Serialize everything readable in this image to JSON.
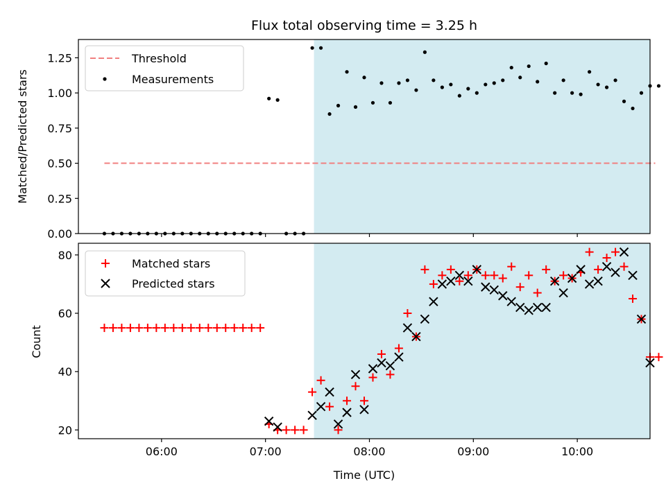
{
  "chart_data": [
    {
      "type": "scatter",
      "title": "Flux total observing time = 3.25 h",
      "xlabel": "",
      "ylabel": "Matched/Predicted stars",
      "xlim": [
        "05:12",
        "10:42"
      ],
      "ylim": [
        0,
        1.38
      ],
      "y_ticks": [
        "0.00",
        "0.25",
        "0.50",
        "0.75",
        "1.00",
        "1.25"
      ],
      "highlight_span": {
        "start": "07:28",
        "end": "10:46",
        "color": "#d3ebf1"
      },
      "legend_position": "upper-left",
      "series": [
        {
          "name": "Threshold",
          "kind": "dashed-line",
          "color": "#f07f7f",
          "x": [
            "05:27",
            "10:45"
          ],
          "y": [
            0.5,
            0.5
          ]
        },
        {
          "name": "Measurements",
          "kind": "dots",
          "color": "#000000",
          "x": [
            "05:27",
            "05:32",
            "05:37",
            "05:42",
            "05:47",
            "05:52",
            "05:57",
            "06:02",
            "06:07",
            "06:12",
            "06:17",
            "06:22",
            "06:27",
            "06:32",
            "06:37",
            "06:42",
            "06:47",
            "06:52",
            "06:57",
            "07:02",
            "07:07",
            "07:12",
            "07:17",
            "07:22",
            "07:27",
            "07:32",
            "07:37",
            "07:42",
            "07:47",
            "07:52",
            "07:57",
            "08:02",
            "08:07",
            "08:12",
            "08:17",
            "08:22",
            "08:27",
            "08:32",
            "08:37",
            "08:42",
            "08:47",
            "08:52",
            "08:57",
            "09:02",
            "09:07",
            "09:12",
            "09:17",
            "09:22",
            "09:27",
            "09:32",
            "09:37",
            "09:42",
            "09:47",
            "09:52",
            "09:57",
            "10:02",
            "10:07",
            "10:12",
            "10:17",
            "10:22",
            "10:27",
            "10:32",
            "10:37",
            "10:42",
            "10:47"
          ],
          "y": [
            0,
            0,
            0,
            0,
            0,
            0,
            0,
            0,
            0,
            0,
            0,
            0,
            0,
            0,
            0,
            0,
            0,
            0,
            0,
            0.96,
            0.95,
            0,
            0,
            0,
            1.32,
            1.32,
            0.85,
            0.91,
            1.15,
            0.9,
            1.11,
            0.93,
            1.07,
            0.93,
            1.07,
            1.09,
            1.02,
            1.29,
            1.09,
            1.04,
            1.06,
            0.98,
            1.03,
            1.0,
            1.06,
            1.07,
            1.09,
            1.18,
            1.11,
            1.19,
            1.08,
            1.21,
            1.0,
            1.09,
            1.0,
            0.99,
            1.15,
            1.06,
            1.04,
            1.09,
            0.94,
            0.89,
            1.0,
            1.05,
            1.05
          ]
        }
      ]
    },
    {
      "type": "scatter",
      "title": "",
      "xlabel": "Time (UTC)",
      "ylabel": "Count",
      "xlim": [
        "05:12",
        "10:42"
      ],
      "ylim": [
        17,
        84
      ],
      "y_ticks": [
        "20",
        "40",
        "60",
        "80"
      ],
      "x_ticks": [
        "06:00",
        "07:00",
        "08:00",
        "09:00",
        "10:00"
      ],
      "highlight_span": {
        "start": "07:28",
        "end": "10:46",
        "color": "#d3ebf1"
      },
      "legend_position": "upper-left",
      "series": [
        {
          "name": "Matched stars",
          "marker": "plus",
          "color": "#ff0000",
          "x": [
            "05:27",
            "05:32",
            "05:37",
            "05:42",
            "05:47",
            "05:52",
            "05:57",
            "06:02",
            "06:07",
            "06:12",
            "06:17",
            "06:22",
            "06:27",
            "06:32",
            "06:37",
            "06:42",
            "06:47",
            "06:52",
            "06:57",
            "07:02",
            "07:07",
            "07:12",
            "07:17",
            "07:22",
            "07:27",
            "07:32",
            "07:37",
            "07:42",
            "07:47",
            "07:52",
            "07:57",
            "08:02",
            "08:07",
            "08:12",
            "08:17",
            "08:22",
            "08:27",
            "08:32",
            "08:37",
            "08:42",
            "08:47",
            "08:52",
            "08:57",
            "09:02",
            "09:07",
            "09:12",
            "09:17",
            "09:22",
            "09:27",
            "09:32",
            "09:37",
            "09:42",
            "09:47",
            "09:52",
            "09:57",
            "10:02",
            "10:07",
            "10:12",
            "10:17",
            "10:22",
            "10:27",
            "10:32",
            "10:37",
            "10:42",
            "10:47"
          ],
          "y": [
            55,
            55,
            55,
            55,
            55,
            55,
            55,
            55,
            55,
            55,
            55,
            55,
            55,
            55,
            55,
            55,
            55,
            55,
            55,
            22,
            20,
            20,
            20,
            20,
            33,
            37,
            28,
            20,
            30,
            35,
            30,
            38,
            46,
            39,
            48,
            60,
            52,
            75,
            70,
            73,
            75,
            71,
            73,
            75,
            73,
            73,
            72,
            76,
            69,
            73,
            67,
            75,
            71,
            73,
            72,
            74,
            81,
            75,
            79,
            81,
            76,
            65,
            58,
            45,
            45
          ]
        },
        {
          "name": "Predicted stars",
          "marker": "cross",
          "color": "#000000",
          "x": [
            "07:02",
            "07:07",
            "07:27",
            "07:32",
            "07:37",
            "07:42",
            "07:47",
            "07:52",
            "07:57",
            "08:02",
            "08:07",
            "08:12",
            "08:17",
            "08:22",
            "08:27",
            "08:32",
            "08:37",
            "08:42",
            "08:47",
            "08:52",
            "08:57",
            "09:02",
            "09:07",
            "09:12",
            "09:17",
            "09:22",
            "09:27",
            "09:32",
            "09:37",
            "09:42",
            "09:47",
            "09:52",
            "09:57",
            "10:02",
            "10:07",
            "10:12",
            "10:17",
            "10:22",
            "10:27",
            "10:32",
            "10:37",
            "10:42"
          ],
          "y": [
            23,
            21,
            25,
            28,
            33,
            22,
            26,
            39,
            27,
            41,
            43,
            42,
            45,
            55,
            52,
            58,
            64,
            70,
            71,
            73,
            71,
            75,
            69,
            68,
            66,
            64,
            62,
            61,
            62,
            62,
            71,
            67,
            72,
            75,
            70,
            71,
            76,
            74,
            81,
            73,
            58,
            43
          ]
        }
      ]
    }
  ]
}
